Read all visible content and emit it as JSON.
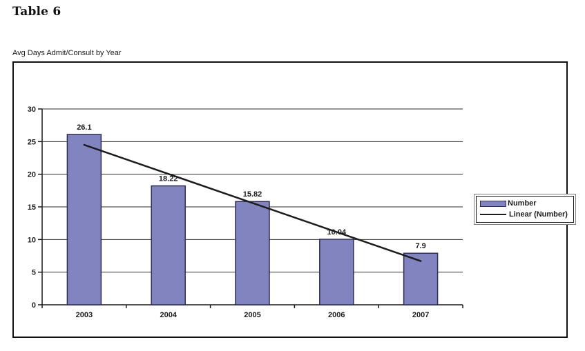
{
  "page": {
    "heading": "Table 6"
  },
  "chart_data": {
    "type": "bar",
    "title": "Avg Days Admit/Consult by Year",
    "categories": [
      "2003",
      "2004",
      "2005",
      "2006",
      "2007"
    ],
    "series": [
      {
        "name": "Number",
        "values": [
          26.1,
          18.22,
          15.82,
          10.04,
          7.9
        ],
        "data_labels": [
          "26.1",
          "18.22",
          "15.82",
          "10.04",
          "7.9"
        ]
      }
    ],
    "trendline": {
      "label": "Linear (Number)",
      "start_value": 24.5,
      "end_value": 6.7
    },
    "ylim": [
      0,
      30
    ],
    "ytick_step": 5,
    "grid": true,
    "legend_position": "right",
    "legend_entries": [
      "Number",
      "Linear (Number)"
    ],
    "colors": {
      "bar_fill": "#8184bf",
      "bar_border": "#2d2d55",
      "trend_line": "#1c1c1c",
      "axis": "#1a1a1a",
      "text": "#1a1a1a"
    }
  }
}
